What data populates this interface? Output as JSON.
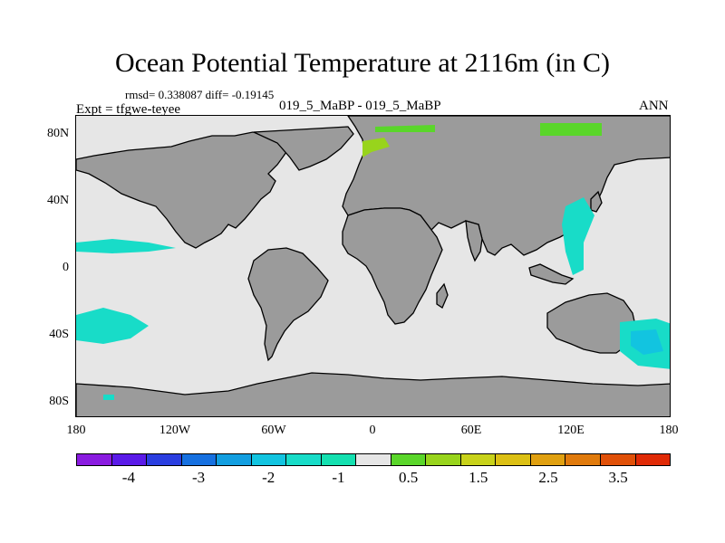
{
  "title": "Ocean Potential Temperature at 2116m (in C)",
  "stats": "rmsd= 0.338087 diff= -0.19145",
  "experiment": "Expt = tfgwe-teyee",
  "subtitle": "019_5_MaBP - 019_5_MaBP",
  "season": "ANN",
  "map_data": {
    "projection": "cylindrical-equidistant",
    "lon_range": [
      -180,
      180
    ],
    "lat_range": [
      -90,
      90
    ],
    "y_ticks": [
      "80N",
      "40N",
      "0",
      "40S",
      "80S"
    ],
    "x_ticks": [
      "180",
      "120W",
      "60W",
      "0",
      "60E",
      "120E",
      "180"
    ],
    "land_color": "#9b9b9b",
    "ocean_color": "#e6e6e6",
    "coast_color": "#000000"
  },
  "colorbar": {
    "colors": [
      "#8a1be0",
      "#5a1ae8",
      "#2a3ee0",
      "#1670e0",
      "#129ee0",
      "#12c4e0",
      "#18dcc8",
      "#14e0b0",
      "#e6e6e6",
      "#5ad62a",
      "#98d41c",
      "#c8d21a",
      "#dcc014",
      "#e0a010",
      "#e07a0c",
      "#e05008",
      "#e02a06"
    ],
    "labels": [
      "-4",
      "-3",
      "-2",
      "-1",
      "0.5",
      "1.5",
      "2.5",
      "3.5"
    ]
  }
}
